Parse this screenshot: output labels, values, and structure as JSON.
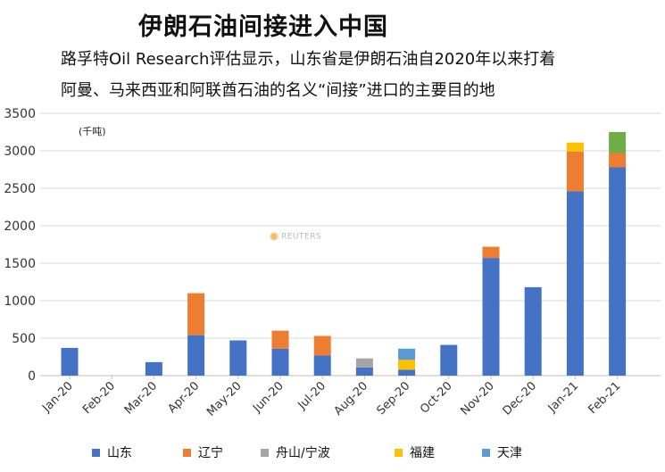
{
  "title": "伊朗石油间接进入中国",
  "subtitle_line1": "路孚特Oil Research评估显示，山东省是伊朗石油自2020年以来打着",
  "subtitle_line2": "阿曼、马来西亚和阿联酋石油的名义“间接”进口的主要目的地",
  "watermark": "REUTERS",
  "colors": {
    "shandong": "#4472c4",
    "liaoning": "#ed7d31",
    "zhoushan": "#a5a5a5",
    "fujian": "#ffc000",
    "tianjin": "#5b9bd5",
    "green": "#70ad47"
  },
  "chart_data": {
    "type": "bar",
    "stacked": true,
    "unit_label": "(千吨)",
    "ylim": [
      0,
      3500
    ],
    "yticks": [
      0,
      500,
      1000,
      1500,
      2000,
      2500,
      3000,
      3500
    ],
    "grid": true,
    "legend_position": "bottom",
    "categories": [
      "Jan-20",
      "Feb-20",
      "Mar-20",
      "Apr-20",
      "May-20",
      "Jun-20",
      "Jul-20",
      "Aug-20",
      "Sep-20",
      "Oct-20",
      "Nov-20",
      "Dec-20",
      "Jan-21",
      "Feb-21"
    ],
    "series": [
      {
        "name": "山东",
        "color": "#4472c4",
        "values": [
          370,
          0,
          180,
          540,
          470,
          360,
          270,
          110,
          80,
          410,
          1570,
          1180,
          2460,
          2780
        ]
      },
      {
        "name": "辽宁",
        "color": "#ed7d31",
        "values": [
          0,
          0,
          0,
          560,
          0,
          240,
          260,
          0,
          0,
          0,
          150,
          0,
          530,
          190
        ]
      },
      {
        "name": "舟山/宁波",
        "color": "#a5a5a5",
        "values": [
          0,
          0,
          0,
          0,
          0,
          0,
          0,
          120,
          0,
          0,
          0,
          0,
          0,
          0
        ]
      },
      {
        "name": "福建",
        "color": "#ffc000",
        "values": [
          0,
          0,
          0,
          0,
          0,
          0,
          0,
          0,
          130,
          0,
          0,
          0,
          120,
          0
        ]
      },
      {
        "name": "天津",
        "color": "#5b9bd5",
        "values": [
          0,
          0,
          0,
          0,
          0,
          0,
          0,
          0,
          150,
          0,
          0,
          0,
          0,
          0
        ]
      },
      {
        "color": "#70ad47",
        "values": [
          0,
          0,
          0,
          0,
          0,
          0,
          0,
          0,
          0,
          0,
          0,
          0,
          0,
          280
        ]
      }
    ]
  }
}
